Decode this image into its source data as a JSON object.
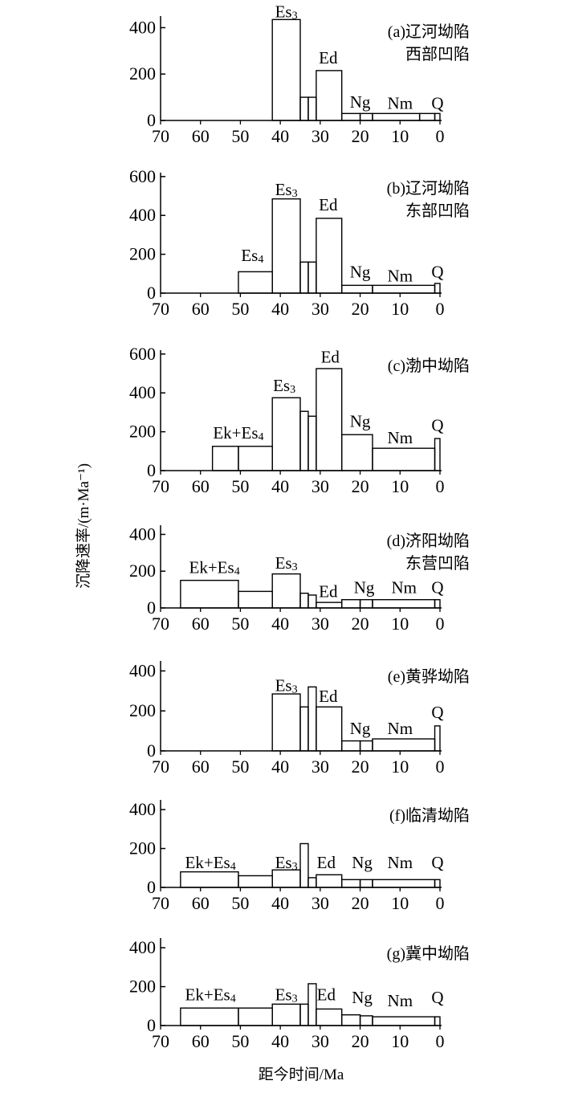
{
  "y_axis_title": "沉降速率/(m·Ma⁻¹)",
  "x_axis_title": "距今时间/Ma",
  "x_ticks": [
    "70",
    "60",
    "50",
    "40",
    "30",
    "20",
    "10",
    "0"
  ],
  "chart_data": [
    {
      "type": "bar",
      "title": "(a)辽河坳陷",
      "subtitle": "西部凹陷",
      "xlim": [
        70,
        0
      ],
      "ylim": [
        0,
        450
      ],
      "y_ticks": [
        "0",
        "200",
        "400"
      ],
      "bars": [
        {
          "x0": 42,
          "x1": 35,
          "value": 435
        },
        {
          "x0": 35,
          "x1": 33,
          "value": 100
        },
        {
          "x0": 33,
          "x1": 31,
          "value": 100
        },
        {
          "x0": 31,
          "x1": 24.6,
          "value": 215
        },
        {
          "x0": 24.6,
          "x1": 20,
          "value": 30
        },
        {
          "x0": 20,
          "x1": 16.9,
          "value": 30
        },
        {
          "x0": 16.9,
          "x1": 5.1,
          "value": 30
        },
        {
          "x0": 5.1,
          "x1": 1.3,
          "value": 30
        },
        {
          "x0": 1.3,
          "x1": 0,
          "value": 30
        }
      ],
      "annotations": [
        {
          "base": "Es",
          "sub": "3",
          "x": 38.5,
          "y": 445
        },
        {
          "base": "Ed",
          "x": 28,
          "y": 245
        },
        {
          "base": "Ng",
          "x": 20,
          "y": 55
        },
        {
          "base": "Nm",
          "x": 10,
          "y": 50
        },
        {
          "base": "Q",
          "x": 0.6,
          "y": 50
        }
      ]
    },
    {
      "type": "bar",
      "title": "(b)辽河坳陷",
      "subtitle": "东部凹陷",
      "xlim": [
        70,
        0
      ],
      "ylim": [
        0,
        620
      ],
      "y_ticks": [
        "0",
        "200",
        "400",
        "600"
      ],
      "bars": [
        {
          "x0": 50.5,
          "x1": 42,
          "value": 110
        },
        {
          "x0": 42,
          "x1": 35,
          "value": 485
        },
        {
          "x0": 35,
          "x1": 33,
          "value": 160
        },
        {
          "x0": 33,
          "x1": 31,
          "value": 160
        },
        {
          "x0": 31,
          "x1": 24.6,
          "value": 385
        },
        {
          "x0": 24.6,
          "x1": 16.9,
          "value": 40
        },
        {
          "x0": 16.9,
          "x1": 1.3,
          "value": 40
        },
        {
          "x0": 1.3,
          "x1": 0,
          "value": 50
        }
      ],
      "annotations": [
        {
          "base": "Es",
          "sub": "4",
          "x": 47,
          "y": 165
        },
        {
          "base": "Es",
          "sub": "3",
          "x": 38.5,
          "y": 505
        },
        {
          "base": "Ed",
          "x": 28,
          "y": 425
        },
        {
          "base": "Ng",
          "x": 20,
          "y": 80
        },
        {
          "base": "Nm",
          "x": 10,
          "y": 60
        },
        {
          "base": "Q",
          "x": 0.6,
          "y": 80
        }
      ]
    },
    {
      "type": "bar",
      "title": "(c)渤中坳陷",
      "subtitle": "",
      "xlim": [
        70,
        0
      ],
      "ylim": [
        0,
        620
      ],
      "y_ticks": [
        "0",
        "200",
        "400",
        "600"
      ],
      "bars": [
        {
          "x0": 57,
          "x1": 50.5,
          "value": 125
        },
        {
          "x0": 50.5,
          "x1": 42,
          "value": 125
        },
        {
          "x0": 42,
          "x1": 35,
          "value": 375
        },
        {
          "x0": 35,
          "x1": 33,
          "value": 305
        },
        {
          "x0": 33,
          "x1": 31,
          "value": 280
        },
        {
          "x0": 31,
          "x1": 24.6,
          "value": 525
        },
        {
          "x0": 24.6,
          "x1": 16.9,
          "value": 185
        },
        {
          "x0": 16.9,
          "x1": 1.3,
          "value": 115
        },
        {
          "x0": 1.3,
          "x1": 0,
          "value": 165
        }
      ],
      "annotations": [
        {
          "base": "Ek+Es",
          "sub": "4",
          "x": 50.5,
          "y": 165
        },
        {
          "base": "Es",
          "sub": "3",
          "x": 39,
          "y": 410
        },
        {
          "base": "Ed",
          "x": 27.5,
          "y": 555
        },
        {
          "base": "Ng",
          "x": 20,
          "y": 225
        },
        {
          "base": "Nm",
          "x": 10,
          "y": 140
        },
        {
          "base": "Q",
          "x": 0.6,
          "y": 205
        }
      ]
    },
    {
      "type": "bar",
      "title": "(d)济阳坳陷",
      "subtitle": "东营凹陷",
      "xlim": [
        70,
        0
      ],
      "ylim": [
        0,
        450
      ],
      "y_ticks": [
        "0",
        "200",
        "400"
      ],
      "bars": [
        {
          "x0": 65,
          "x1": 50.5,
          "value": 150
        },
        {
          "x0": 50.5,
          "x1": 42,
          "value": 90
        },
        {
          "x0": 42,
          "x1": 35,
          "value": 185
        },
        {
          "x0": 35,
          "x1": 33,
          "value": 80
        },
        {
          "x0": 33,
          "x1": 31,
          "value": 70
        },
        {
          "x0": 31,
          "x1": 24.6,
          "value": 30
        },
        {
          "x0": 24.6,
          "x1": 20,
          "value": 45
        },
        {
          "x0": 20,
          "x1": 16.9,
          "value": 45
        },
        {
          "x0": 16.9,
          "x1": 1.3,
          "value": 45
        },
        {
          "x0": 1.3,
          "x1": 0,
          "value": 45
        }
      ],
      "annotations": [
        {
          "base": "Ek+Es",
          "sub": "4",
          "x": 56.5,
          "y": 190
        },
        {
          "base": "Es",
          "sub": "3",
          "x": 38.5,
          "y": 215
        },
        {
          "base": "Ed",
          "x": 28,
          "y": 60
        },
        {
          "base": "Ng",
          "x": 19,
          "y": 80
        },
        {
          "base": "Nm",
          "x": 9,
          "y": 80
        },
        {
          "base": "Q",
          "x": 0.6,
          "y": 80
        }
      ]
    },
    {
      "type": "bar",
      "title": "(e)黄骅坳陷",
      "subtitle": "",
      "xlim": [
        70,
        0
      ],
      "ylim": [
        0,
        450
      ],
      "y_ticks": [
        "0",
        "200",
        "400"
      ],
      "bars": [
        {
          "x0": 42,
          "x1": 35,
          "value": 285
        },
        {
          "x0": 35,
          "x1": 33,
          "value": 220
        },
        {
          "x0": 33,
          "x1": 31,
          "value": 320
        },
        {
          "x0": 31,
          "x1": 24.6,
          "value": 220
        },
        {
          "x0": 24.6,
          "x1": 20,
          "value": 50
        },
        {
          "x0": 20,
          "x1": 16.9,
          "value": 50
        },
        {
          "x0": 16.9,
          "x1": 1.3,
          "value": 60
        },
        {
          "x0": 1.3,
          "x1": 0,
          "value": 125
        }
      ],
      "annotations": [
        {
          "base": "Es",
          "sub": "3",
          "x": 38.5,
          "y": 300
        },
        {
          "base": "Ed",
          "x": 28,
          "y": 245
        },
        {
          "base": "Ng",
          "x": 20,
          "y": 85
        },
        {
          "base": "Nm",
          "x": 10,
          "y": 85
        },
        {
          "base": "Q",
          "x": 0.6,
          "y": 165
        }
      ]
    },
    {
      "type": "bar",
      "title": "(f)临清坳陷",
      "subtitle": "",
      "xlim": [
        70,
        0
      ],
      "ylim": [
        0,
        450
      ],
      "y_ticks": [
        "0",
        "200",
        "400"
      ],
      "bars": [
        {
          "x0": 65,
          "x1": 50.5,
          "value": 80
        },
        {
          "x0": 50.5,
          "x1": 42,
          "value": 60
        },
        {
          "x0": 42,
          "x1": 35,
          "value": 90
        },
        {
          "x0": 35,
          "x1": 33,
          "value": 225
        },
        {
          "x0": 33,
          "x1": 31,
          "value": 50
        },
        {
          "x0": 31,
          "x1": 24.6,
          "value": 65
        },
        {
          "x0": 24.6,
          "x1": 20,
          "value": 40
        },
        {
          "x0": 20,
          "x1": 16.9,
          "value": 40
        },
        {
          "x0": 16.9,
          "x1": 1.3,
          "value": 40
        },
        {
          "x0": 1.3,
          "x1": 0,
          "value": 40
        }
      ],
      "annotations": [
        {
          "base": "Ek+Es",
          "sub": "4",
          "x": 57.5,
          "y": 100
        },
        {
          "base": "Es",
          "sub": "3",
          "x": 38.5,
          "y": 100
        },
        {
          "base": "Ed",
          "x": 28.5,
          "y": 100
        },
        {
          "base": "Ng",
          "x": 19.5,
          "y": 100
        },
        {
          "base": "Nm",
          "x": 10,
          "y": 100
        },
        {
          "base": "Q",
          "x": 0.6,
          "y": 100
        }
      ]
    },
    {
      "type": "bar",
      "title": "(g)冀中坳陷",
      "subtitle": "",
      "xlim": [
        70,
        0
      ],
      "ylim": [
        0,
        450
      ],
      "y_ticks": [
        "0",
        "200",
        "400"
      ],
      "bars": [
        {
          "x0": 65,
          "x1": 50.5,
          "value": 90
        },
        {
          "x0": 50.5,
          "x1": 42,
          "value": 90
        },
        {
          "x0": 42,
          "x1": 35,
          "value": 110
        },
        {
          "x0": 35,
          "x1": 33,
          "value": 110
        },
        {
          "x0": 33,
          "x1": 31,
          "value": 215
        },
        {
          "x0": 31,
          "x1": 24.6,
          "value": 85
        },
        {
          "x0": 24.6,
          "x1": 20,
          "value": 55
        },
        {
          "x0": 20,
          "x1": 16.9,
          "value": 50
        },
        {
          "x0": 16.9,
          "x1": 1.3,
          "value": 45
        },
        {
          "x0": 1.3,
          "x1": 0,
          "value": 45
        }
      ],
      "annotations": [
        {
          "base": "Ek+Es",
          "sub": "4",
          "x": 57.5,
          "y": 130
        },
        {
          "base": "Es",
          "sub": "3",
          "x": 38.5,
          "y": 130
        },
        {
          "base": "Ed",
          "x": 28.5,
          "y": 130
        },
        {
          "base": "Ng",
          "x": 19.5,
          "y": 115
        },
        {
          "base": "Nm",
          "x": 10,
          "y": 100
        },
        {
          "base": "Q",
          "x": 0.6,
          "y": 115
        }
      ]
    }
  ]
}
